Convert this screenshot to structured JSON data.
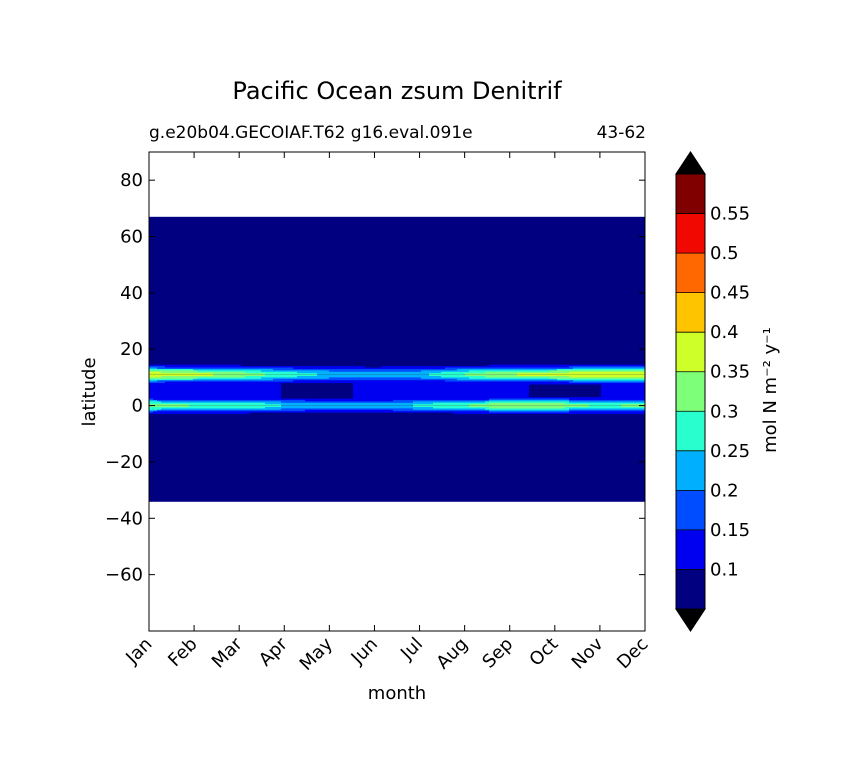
{
  "chart_data": {
    "type": "heatmap",
    "title": "Pacific Ocean zsum Denitrif",
    "subtitle_left": "g.e20b04.GECOIAF.T62 g16.eval.091e",
    "subtitle_right": "43-62",
    "xlabel": "month",
    "ylabel": "latitude",
    "x_categories": [
      "Jan",
      "Feb",
      "Mar",
      "Apr",
      "May",
      "Jun",
      "Jul",
      "Aug",
      "Sep",
      "Oct",
      "Nov",
      "Dec"
    ],
    "y_ticks": [
      80,
      60,
      40,
      20,
      0,
      -20,
      -40,
      -60
    ],
    "y_tick_labels": [
      "80",
      "60",
      "40",
      "20",
      "0",
      "−20",
      "−40",
      "−60"
    ],
    "ylim": [
      -80,
      90
    ],
    "data_extent_lat": [
      -34,
      67
    ],
    "colorbar": {
      "label": "mol N m⁻² y⁻¹",
      "levels": [
        0.05,
        0.1,
        0.15,
        0.2,
        0.25,
        0.3,
        0.35,
        0.4,
        0.45,
        0.5,
        0.55,
        0.6
      ],
      "tick_values": [
        0.1,
        0.15,
        0.2,
        0.25,
        0.3,
        0.35,
        0.4,
        0.45,
        0.5,
        0.55
      ],
      "tick_labels": [
        "0.1",
        "0.15",
        "0.2",
        "0.25",
        "0.3",
        "0.35",
        "0.4",
        "0.45",
        "0.5",
        "0.55"
      ],
      "colors": [
        "#000080",
        "#0000f1",
        "#004dff",
        "#00b0ff",
        "#29ffce",
        "#7dff7a",
        "#ceff29",
        "#ffc400",
        "#ff6800",
        "#f10800",
        "#800000"
      ],
      "extend": "both",
      "under_color": "#000000",
      "over_color": "#000000"
    },
    "bands": [
      {
        "lat": 11,
        "values": [
          0.38,
          0.37,
          0.33,
          0.28,
          0.24,
          0.22,
          0.24,
          0.3,
          0.35,
          0.37,
          0.39,
          0.4
        ]
      },
      {
        "lat": 0,
        "values": [
          0.33,
          0.3,
          0.3,
          0.25,
          0.22,
          0.22,
          0.26,
          0.3,
          0.35,
          0.34,
          0.29,
          0.32
        ]
      }
    ]
  }
}
